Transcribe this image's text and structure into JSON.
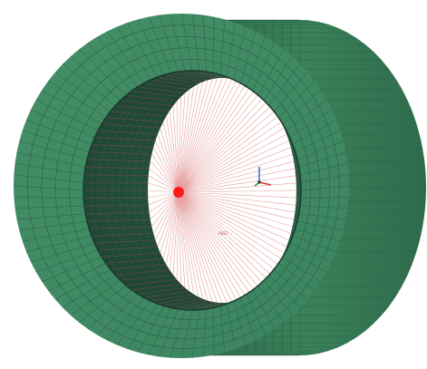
{
  "viewport": {
    "background": "#ffffff",
    "model": {
      "name": "hollow-cylinder-mesh",
      "face_color": "#3f8a62",
      "side_color": "#3a7f5a",
      "inner_dark": "#1f4434",
      "mesh_color": "#2a5e45",
      "radial_elements": 96,
      "axial_divisions": 14
    },
    "load_point": {
      "color": "#ff1a1a",
      "spoke_color": "#e6a0a0",
      "spokes": 96
    },
    "triad": {
      "x_color": "#d23a2a",
      "y_color": "#2a6fd2",
      "z_color": "#2a9a4a"
    },
    "tiny_label": "RBE2"
  }
}
